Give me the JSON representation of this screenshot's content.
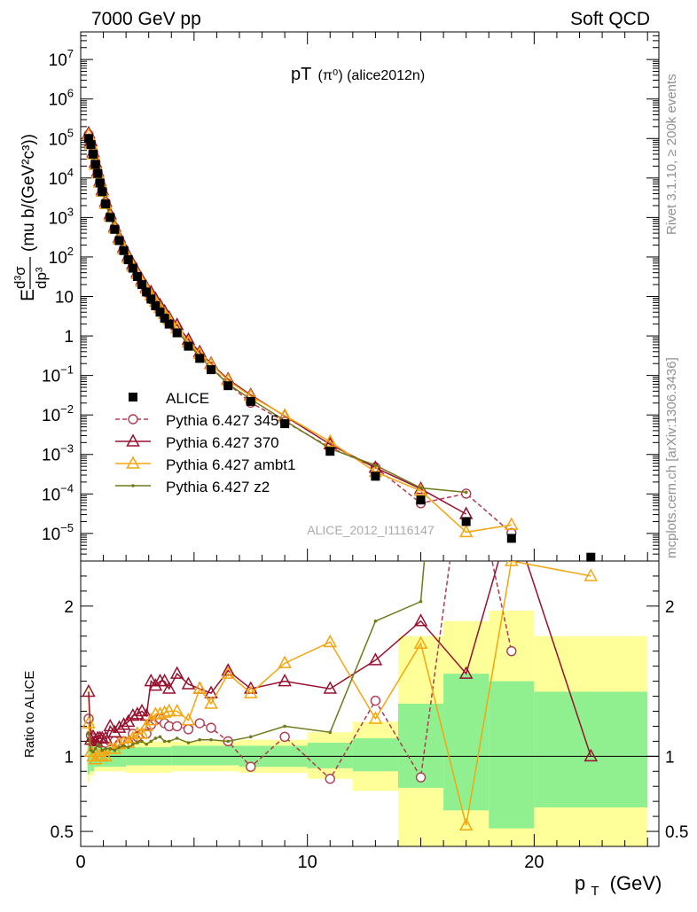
{
  "header": {
    "left": "7000 GeV pp",
    "right": "Soft QCD"
  },
  "side_labels": {
    "rivet": "Rivet 3.1.10, ≥ 200k events",
    "mcplots": "mcplots.cern.ch [arXiv:1306.3436]"
  },
  "chart_data": [
    {
      "type": "scatter",
      "panel": "main",
      "title_main": "pT",
      "title_sub": "(π⁰) (alice2012n)",
      "ylabel": "E d³σ/dp³ (mu b/(GeV²c³))",
      "ylabel_parts": {
        "E": "E",
        "num": "d³σ",
        "den": "dp³",
        "units": "(mu b/(GeV²c³))"
      },
      "yscale": "log",
      "ylim": [
        2e-06,
        50000000.0
      ],
      "xlim": [
        0,
        25.5
      ],
      "yticks": [
        {
          "v": 10000000.0,
          "base": "10",
          "exp": "7"
        },
        {
          "v": 1000000.0,
          "base": "10",
          "exp": "6"
        },
        {
          "v": 100000.0,
          "base": "10",
          "exp": "5"
        },
        {
          "v": 10000.0,
          "base": "10",
          "exp": "4"
        },
        {
          "v": 1000.0,
          "base": "10",
          "exp": "3"
        },
        {
          "v": 100.0,
          "base": "10",
          "exp": "2"
        },
        {
          "v": 10,
          "base": "10",
          "exp": ""
        },
        {
          "v": 1,
          "base": "1",
          "exp": ""
        },
        {
          "v": 0.1,
          "base": "10",
          "exp": "−1"
        },
        {
          "v": 0.01,
          "base": "10",
          "exp": "−2"
        },
        {
          "v": 0.001,
          "base": "10",
          "exp": "−3"
        },
        {
          "v": 0.0001,
          "base": "10",
          "exp": "−4"
        },
        {
          "v": 1e-05,
          "base": "10",
          "exp": "−5"
        }
      ],
      "watermark": "ALICE_2012_I1116147",
      "legend_position": "lower-left",
      "x": [
        0.35,
        0.45,
        0.55,
        0.65,
        0.75,
        0.85,
        0.95,
        1.1,
        1.3,
        1.5,
        1.7,
        1.9,
        2.1,
        2.3,
        2.5,
        2.7,
        2.9,
        3.1,
        3.3,
        3.5,
        3.7,
        3.9,
        4.25,
        4.75,
        5.25,
        5.75,
        6.5,
        7.5,
        9.0,
        11.0,
        13.0,
        15.0,
        17.0,
        19.0,
        22.5
      ],
      "series": [
        {
          "name": "ALICE",
          "color": "#000000",
          "marker": "square",
          "values": [
            100000,
            70000,
            40000,
            22000,
            13000,
            7500,
            4500,
            2200,
            1000,
            500,
            260,
            145,
            85,
            52,
            32,
            20,
            13,
            8.6,
            5.8,
            4.0,
            2.8,
            2.0,
            1.2,
            0.55,
            0.27,
            0.14,
            0.055,
            0.022,
            0.006,
            0.0012,
            0.00028,
            7e-05,
            2e-05,
            7.5e-06,
            2.5e-06
          ]
        },
        {
          "name": "Pythia 6.427 345",
          "color": "#b03a52",
          "marker": "circle",
          "dashed": true,
          "values": [
            125000,
            80000,
            45000,
            25000,
            14500,
            8200,
            5000,
            2400,
            1100,
            550,
            280,
            160,
            93,
            60,
            36,
            23,
            14.9,
            10.4,
            7.2,
            5.0,
            3.4,
            2.4,
            1.44,
            0.65,
            0.33,
            0.166,
            0.0605,
            0.0205,
            0.0068,
            0.0015,
            0.00047,
            5.8e-05,
            0.000102,
            1.03e-05,
            null
          ]
        },
        {
          "name": "Pythia 6.427 370",
          "color": "#99102e",
          "marker": "triangle",
          "values": [
            135000,
            85000,
            45000,
            24500,
            14500,
            8300,
            5000,
            2500,
            1200,
            580,
            310,
            175,
            105,
            66,
            41,
            26,
            17,
            12.9,
            8.7,
            6.0,
            4.2,
            2.9,
            1.9,
            0.8,
            0.39,
            0.2,
            0.08,
            0.032,
            0.0094,
            0.0018,
            0.00046,
            0.000134,
            3.1e-05,
            null,
            null
          ]
        },
        {
          "name": "Pythia 6.427 ambt1",
          "color": "#f5a50e",
          "marker": "triangle",
          "hollow": true,
          "values": [
            122000,
            72000,
            40000,
            21500,
            13000,
            7600,
            4500,
            2200,
            1050,
            530,
            280,
            158,
            93,
            58,
            37,
            23,
            15.6,
            10.7,
            7.4,
            5.1,
            3.6,
            2.6,
            1.56,
            0.68,
            0.35,
            0.19,
            0.075,
            0.03,
            0.0097,
            0.0021,
            0.00036,
            0.00012,
            1.08e-05,
            1.65e-05,
            null
          ]
        },
        {
          "name": "Pythia 6.427 z2",
          "color": "#6f7a1a",
          "marker": "dot",
          "values": [
            115000,
            73000,
            41000,
            23000,
            14000,
            8000,
            4700,
            2300,
            1050,
            520,
            275,
            155,
            90,
            56,
            35,
            22,
            14,
            9.5,
            6.5,
            4.5,
            3.1,
            2.2,
            1.35,
            0.6,
            0.3,
            0.155,
            0.0605,
            0.025,
            0.0072,
            0.0014,
            0.00053,
            0.000142,
            0.00011,
            null,
            null
          ]
        }
      ]
    },
    {
      "type": "line",
      "panel": "ratio",
      "ylabel": "Ratio to ALICE",
      "xlabel_main": "p",
      "xlabel_sub": "T",
      "xlabel_unit": "(GeV)",
      "ylim": [
        0.4,
        2.3
      ],
      "xlim": [
        0,
        25.5
      ],
      "xticks": [
        0,
        10,
        20
      ],
      "yticks": [
        0.5,
        1,
        2
      ],
      "yticks_right": [
        0.5,
        1,
        2
      ],
      "reference_line": 1.0,
      "x": [
        0.35,
        0.45,
        0.55,
        0.65,
        0.75,
        0.85,
        0.95,
        1.1,
        1.3,
        1.5,
        1.7,
        1.9,
        2.1,
        2.3,
        2.5,
        2.7,
        2.9,
        3.1,
        3.3,
        3.5,
        3.7,
        3.9,
        4.25,
        4.75,
        5.25,
        5.75,
        6.5,
        7.5,
        9.0,
        11.0,
        13.0,
        15.0,
        17.0,
        19.0,
        22.5
      ],
      "series": [
        {
          "name": "Pythia 6.427 345",
          "color": "#b03a52",
          "values": [
            1.25,
            1.14,
            1.12,
            1.1,
            1.1,
            1.09,
            1.11,
            1.09,
            1.1,
            1.1,
            1.08,
            1.1,
            1.09,
            1.15,
            1.13,
            1.15,
            1.15,
            1.21,
            1.24,
            1.25,
            1.22,
            1.2,
            1.2,
            1.18,
            1.22,
            1.19,
            1.1,
            0.93,
            1.13,
            0.85,
            1.37,
            0.86,
            3.1,
            1.7,
            null
          ]
        },
        {
          "name": "Pythia 6.427 370",
          "color": "#99102e",
          "values": [
            1.43,
            1.11,
            1.13,
            1.1,
            1.12,
            1.12,
            1.12,
            1.12,
            1.2,
            1.16,
            1.19,
            1.21,
            1.23,
            1.27,
            1.28,
            1.3,
            1.27,
            1.5,
            1.47,
            1.5,
            1.5,
            1.45,
            1.55,
            1.48,
            1.45,
            1.42,
            1.57,
            1.45,
            1.5,
            1.45,
            1.64,
            1.9,
            1.55,
            2.6,
            1.0
          ]
        },
        {
          "name": "Pythia 6.427 ambt1",
          "color": "#f5a50e",
          "values": [
            1.22,
            1.03,
            1.0,
            0.98,
            1.0,
            1.0,
            1.0,
            1.0,
            1.05,
            1.05,
            1.08,
            1.09,
            1.09,
            1.12,
            1.15,
            1.15,
            1.2,
            1.24,
            1.28,
            1.28,
            1.29,
            1.3,
            1.3,
            1.24,
            1.45,
            1.35,
            1.55,
            1.42,
            1.62,
            1.76,
            1.25,
            1.75,
            0.54,
            2.3,
            2.2
          ]
        },
        {
          "name": "Pythia 6.427 z2",
          "color": "#6f7a1a",
          "values": [
            1.15,
            1.04,
            1.03,
            1.05,
            1.08,
            1.07,
            1.04,
            1.05,
            1.05,
            1.04,
            1.06,
            1.07,
            1.06,
            1.08,
            1.09,
            1.1,
            1.08,
            1.1,
            1.12,
            1.13,
            1.1,
            1.1,
            1.12,
            1.09,
            1.11,
            1.11,
            1.1,
            1.13,
            1.2,
            1.16,
            1.9,
            2.03,
            5.5,
            null,
            null
          ]
        }
      ],
      "data_band_inner": [
        {
          "x0": 0.3,
          "x1": 0.4,
          "lo": 0.88,
          "hi": 1.15
        },
        {
          "x0": 0.4,
          "x1": 0.6,
          "lo": 0.9,
          "hi": 1.08
        },
        {
          "x0": 0.6,
          "x1": 2.0,
          "lo": 0.93,
          "hi": 1.06
        },
        {
          "x0": 2.0,
          "x1": 4.0,
          "lo": 0.94,
          "hi": 1.06
        },
        {
          "x0": 4.0,
          "x1": 7.0,
          "lo": 0.94,
          "hi": 1.07
        },
        {
          "x0": 7.0,
          "x1": 10.0,
          "lo": 0.93,
          "hi": 1.07
        },
        {
          "x0": 10.0,
          "x1": 12.0,
          "lo": 0.92,
          "hi": 1.09
        },
        {
          "x0": 12.0,
          "x1": 14.0,
          "lo": 0.9,
          "hi": 1.12
        },
        {
          "x0": 14.0,
          "x1": 16.0,
          "lo": 0.79,
          "hi": 1.35
        },
        {
          "x0": 16.0,
          "x1": 18.0,
          "lo": 0.64,
          "hi": 1.55
        },
        {
          "x0": 18.0,
          "x1": 20.0,
          "lo": 0.52,
          "hi": 1.5
        },
        {
          "x0": 20.0,
          "x1": 25.0,
          "lo": 0.66,
          "hi": 1.43
        }
      ],
      "data_band_outer": [
        {
          "x0": 0.3,
          "x1": 0.4,
          "lo": 0.83,
          "hi": 1.45
        },
        {
          "x0": 0.4,
          "x1": 0.6,
          "lo": 0.87,
          "hi": 1.28
        },
        {
          "x0": 0.6,
          "x1": 2.0,
          "lo": 0.9,
          "hi": 1.11
        },
        {
          "x0": 2.0,
          "x1": 4.0,
          "lo": 0.89,
          "hi": 1.1
        },
        {
          "x0": 4.0,
          "x1": 7.0,
          "lo": 0.9,
          "hi": 1.1
        },
        {
          "x0": 7.0,
          "x1": 10.0,
          "lo": 0.89,
          "hi": 1.11
        },
        {
          "x0": 10.0,
          "x1": 12.0,
          "lo": 0.85,
          "hi": 1.16
        },
        {
          "x0": 12.0,
          "x1": 14.0,
          "lo": 0.77,
          "hi": 1.23
        },
        {
          "x0": 14.0,
          "x1": 16.0,
          "lo": 0.35,
          "hi": 1.8
        },
        {
          "x0": 16.0,
          "x1": 18.0,
          "lo": 0.35,
          "hi": 1.9
        },
        {
          "x0": 18.0,
          "x1": 20.0,
          "lo": 0.35,
          "hi": 1.97
        },
        {
          "x0": 20.0,
          "x1": 25.0,
          "lo": 0.35,
          "hi": 1.8
        }
      ],
      "band_colors": {
        "inner": "#90f090",
        "outer": "#ffff99"
      }
    }
  ]
}
